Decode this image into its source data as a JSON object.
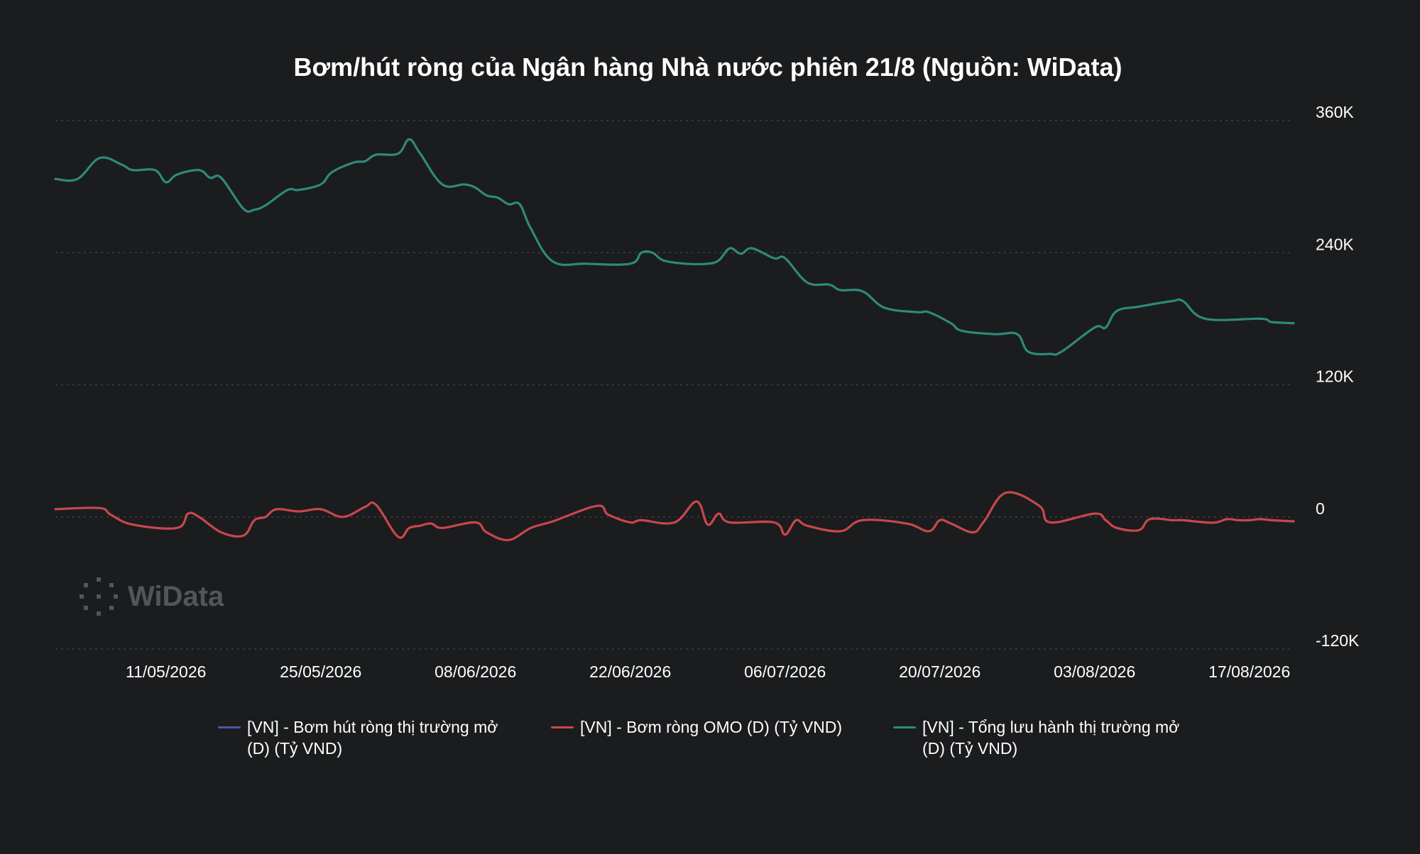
{
  "chart_data": {
    "type": "line",
    "title": "Bơm/hút ròng của Ngân hàng Nhà nước phiên 21/8 (Nguồn: WiData)",
    "x_ticks": [
      "11/05/2026",
      "25/05/2026",
      "08/06/2026",
      "22/06/2026",
      "06/07/2026",
      "20/07/2026",
      "03/08/2026",
      "17/08/2026"
    ],
    "y_ticks": [
      "360K",
      "240K",
      "120K",
      "0",
      "-120K"
    ],
    "ylim": [
      -120000,
      360000
    ],
    "y_axis_position": "right",
    "grid": true,
    "legend_position": "bottom",
    "series": [
      {
        "name": "[VN] - Bơm hút ròng thị trường mở\n(D) (Tỷ VND)",
        "color": "#5055a6",
        "x": [],
        "values": []
      },
      {
        "name": "[VN] - Bơm ròng OMO (D) (Tỷ VND)",
        "color": "#c8474e",
        "x": [
          "2026-05-01",
          "2026-05-05",
          "2026-05-06",
          "2026-05-08",
          "2026-05-12",
          "2026-05-13",
          "2026-05-14",
          "2026-05-16",
          "2026-05-18",
          "2026-05-19",
          "2026-05-20",
          "2026-05-21",
          "2026-05-23",
          "2026-05-25",
          "2026-05-27",
          "2026-05-29",
          "2026-05-30",
          "2026-06-01",
          "2026-06-02",
          "2026-06-03",
          "2026-06-04",
          "2026-06-05",
          "2026-06-08",
          "2026-06-09",
          "2026-06-11",
          "2026-06-13",
          "2026-06-15",
          "2026-06-19",
          "2026-06-20",
          "2026-06-22",
          "2026-06-23",
          "2026-06-26",
          "2026-06-28",
          "2026-06-29",
          "2026-06-30",
          "2026-07-01",
          "2026-07-05",
          "2026-07-06",
          "2026-07-07",
          "2026-07-08",
          "2026-07-11",
          "2026-07-13",
          "2026-07-17",
          "2026-07-19",
          "2026-07-20",
          "2026-07-21",
          "2026-07-23",
          "2026-07-24",
          "2026-07-26",
          "2026-07-29",
          "2026-07-30",
          "2026-08-03",
          "2026-08-04",
          "2026-08-05",
          "2026-08-07",
          "2026-08-08",
          "2026-08-10",
          "2026-08-11",
          "2026-08-13",
          "2026-08-14",
          "2026-08-15",
          "2026-08-16",
          "2026-08-17",
          "2026-08-18",
          "2026-08-19",
          "2026-08-21"
        ],
        "values": [
          7000,
          8000,
          2000,
          -7000,
          -10000,
          3000,
          0,
          -14000,
          -17000,
          -3000,
          0,
          7000,
          5000,
          7000,
          0,
          9000,
          11000,
          -18000,
          -10000,
          -8000,
          -6000,
          -10000,
          -5000,
          -14000,
          -21000,
          -10000,
          -4000,
          10000,
          2000,
          -5000,
          -3000,
          -5000,
          14000,
          -7000,
          3000,
          -5000,
          -5000,
          -16000,
          -3000,
          -8000,
          -13000,
          -3000,
          -6000,
          -13000,
          -3000,
          -6000,
          -14000,
          -4000,
          22000,
          10000,
          -5000,
          3000,
          -3000,
          -10000,
          -12000,
          -2000,
          -3000,
          -3000,
          -5000,
          -5000,
          -2000,
          -3000,
          -3000,
          -2000,
          -3000,
          -4000
        ]
      },
      {
        "name": "[VN] - Tổng lưu hành thị trường mở\n (D) (Tỷ VND)",
        "color": "#2e8a78",
        "x": [
          "2026-05-01",
          "2026-05-03",
          "2026-05-05",
          "2026-05-07",
          "2026-05-08",
          "2026-05-10",
          "2026-05-11",
          "2026-05-12",
          "2026-05-14",
          "2026-05-15",
          "2026-05-16",
          "2026-05-18",
          "2026-05-19",
          "2026-05-20",
          "2026-05-22",
          "2026-05-23",
          "2026-05-25",
          "2026-05-26",
          "2026-05-28",
          "2026-05-29",
          "2026-05-30",
          "2026-06-01",
          "2026-06-02",
          "2026-06-03",
          "2026-06-05",
          "2026-06-07",
          "2026-06-08",
          "2026-06-09",
          "2026-06-10",
          "2026-06-11",
          "2026-06-12",
          "2026-06-13",
          "2026-06-15",
          "2026-06-18",
          "2026-06-22",
          "2026-06-23",
          "2026-06-24",
          "2026-06-25",
          "2026-06-27",
          "2026-06-29",
          "2026-06-30",
          "2026-07-01",
          "2026-07-02",
          "2026-07-03",
          "2026-07-05",
          "2026-07-06",
          "2026-07-08",
          "2026-07-10",
          "2026-07-11",
          "2026-07-13",
          "2026-07-15",
          "2026-07-18",
          "2026-07-19",
          "2026-07-21",
          "2026-07-22",
          "2026-07-25",
          "2026-07-27",
          "2026-07-28",
          "2026-07-30",
          "2026-07-31",
          "2026-08-03",
          "2026-08-04",
          "2026-08-05",
          "2026-08-07",
          "2026-08-10",
          "2026-08-11",
          "2026-08-13",
          "2026-08-18",
          "2026-08-19",
          "2026-08-21"
        ],
        "values": [
          307000,
          307000,
          326000,
          320000,
          315000,
          315000,
          304000,
          311000,
          315000,
          308000,
          308000,
          280000,
          279000,
          283000,
          297000,
          297000,
          302000,
          313000,
          322000,
          323000,
          329000,
          330000,
          343000,
          330000,
          302000,
          302000,
          299000,
          292000,
          290000,
          284000,
          284000,
          262000,
          232000,
          230000,
          230000,
          240000,
          240000,
          233000,
          230000,
          230000,
          233000,
          244000,
          239000,
          244000,
          235000,
          235000,
          213000,
          211000,
          206000,
          205000,
          190000,
          186000,
          186000,
          176000,
          169000,
          166000,
          166000,
          150000,
          148000,
          150000,
          172000,
          172000,
          187000,
          191000,
          196000,
          196000,
          180000,
          180000,
          177000,
          176000
        ]
      }
    ]
  },
  "watermark": {
    "text": "WiData"
  }
}
